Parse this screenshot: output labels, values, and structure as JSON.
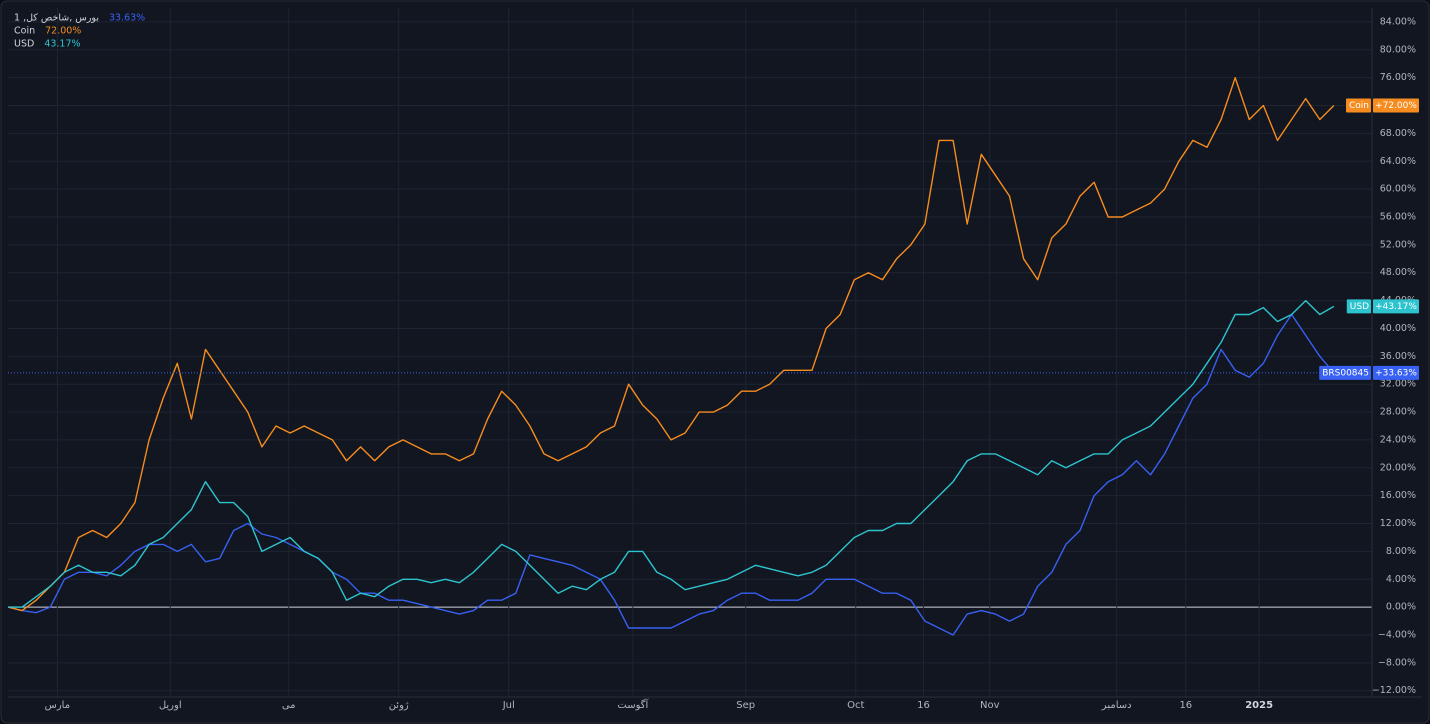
{
  "chart_data": {
    "type": "line",
    "x": [
      0,
      1,
      2,
      3,
      4,
      5,
      6,
      7,
      8,
      9,
      10,
      11,
      12,
      13,
      14,
      15,
      16,
      17,
      18,
      19,
      20,
      21,
      22,
      23,
      24,
      25,
      26,
      27,
      28,
      29,
      30,
      31,
      32,
      33,
      34,
      35,
      36,
      37,
      38,
      39,
      40,
      41,
      42,
      43,
      44,
      45,
      46,
      47,
      48,
      49,
      50,
      51,
      52,
      53,
      54,
      55,
      56,
      57,
      58,
      59,
      60,
      61,
      62,
      63,
      64,
      65,
      66,
      67,
      68,
      69,
      70,
      71,
      72,
      73,
      74,
      75,
      76,
      77,
      78,
      79,
      80,
      81,
      82,
      83,
      84,
      85,
      86,
      87,
      88,
      89,
      90,
      91,
      92,
      93,
      94
    ],
    "xlim": [
      0,
      96.7
    ],
    "xticks": [
      {
        "value": 3.5,
        "label": "مارس"
      },
      {
        "value": 11.5,
        "label": "اوریل"
      },
      {
        "value": 19.9,
        "label": "می"
      },
      {
        "value": 27.7,
        "label": "ژوئن"
      },
      {
        "value": 35.5,
        "label": "Jul"
      },
      {
        "value": 44.3,
        "label": "آگوست"
      },
      {
        "value": 52.3,
        "label": "Sep"
      },
      {
        "value": 60.1,
        "label": "Oct"
      },
      {
        "value": 64.9,
        "label": "16"
      },
      {
        "value": 69.6,
        "label": "Nov"
      },
      {
        "value": 78.6,
        "label": "دسامبر"
      },
      {
        "value": 83.5,
        "label": "16"
      },
      {
        "value": 88.7,
        "label": "2025"
      }
    ],
    "ylim": [
      -12.9,
      86
    ],
    "yticks": [
      {
        "value": -12,
        "label": "−12.00%"
      },
      {
        "value": -8,
        "label": "−8.00%"
      },
      {
        "value": -4,
        "label": "−4.00%"
      },
      {
        "value": 0,
        "label": "0.00%"
      },
      {
        "value": 4,
        "label": "4.00%"
      },
      {
        "value": 8,
        "label": "8.00%"
      },
      {
        "value": 12,
        "label": "12.00%"
      },
      {
        "value": 16,
        "label": "16.00%"
      },
      {
        "value": 20,
        "label": "20.00%"
      },
      {
        "value": 24,
        "label": "24.00%"
      },
      {
        "value": 28,
        "label": "28.00%"
      },
      {
        "value": 32,
        "label": "32.00%"
      },
      {
        "value": 36,
        "label": "36.00%"
      },
      {
        "value": 40,
        "label": "40.00%"
      },
      {
        "value": 44,
        "label": "44.00%"
      },
      {
        "value": 48,
        "label": "48.00%"
      },
      {
        "value": 52,
        "label": "52.00%"
      },
      {
        "value": 56,
        "label": "56.00%"
      },
      {
        "value": 60,
        "label": "60.00%"
      },
      {
        "value": 64,
        "label": "64.00%"
      },
      {
        "value": 68,
        "label": "68.00%"
      },
      {
        "value": 72,
        "label": "72.00%"
      },
      {
        "value": 76,
        "label": "76.00%"
      },
      {
        "value": 80,
        "label": "80.00%"
      },
      {
        "value": 84,
        "label": "84.00%"
      }
    ],
    "grid": true,
    "series": [
      {
        "name": "بورس ,شاخص کل, 1",
        "legend_value": "33.63%",
        "tag": "BRS00845",
        "tag_value": "+33.63%",
        "color": "#3860f2",
        "values": [
          0,
          -0.5,
          -0.8,
          0,
          4,
          5,
          5,
          4.5,
          6,
          8,
          9,
          9,
          8,
          9,
          6.5,
          7,
          11,
          12,
          10.5,
          10,
          9,
          8,
          7,
          5,
          4,
          2,
          2,
          1,
          1,
          0.5,
          0,
          -0.5,
          -1,
          -0.5,
          1,
          1,
          2,
          7.5,
          7,
          6.5,
          6,
          5,
          4,
          1,
          -3,
          -3,
          -3,
          -3,
          -2,
          -1,
          -0.5,
          1,
          2,
          2,
          1,
          1,
          1,
          2,
          4,
          4,
          4,
          3,
          2,
          2,
          1,
          -2,
          -3,
          -4,
          -1,
          -0.5,
          -1,
          -2,
          -1,
          3,
          5,
          9,
          11,
          16,
          18,
          19,
          21,
          19,
          22,
          26,
          30,
          32,
          37,
          34,
          33,
          35,
          39,
          42,
          39,
          36,
          33.63
        ]
      },
      {
        "name": "Coin",
        "legend_value": "72.00%",
        "tag": "Coin",
        "tag_value": "+72.00%",
        "color": "#f68c1f",
        "values": [
          0,
          -0.5,
          1,
          3,
          5,
          10,
          11,
          10,
          12,
          15,
          24,
          30,
          35,
          27,
          37,
          34,
          31,
          28,
          23,
          26,
          25,
          26,
          25,
          24,
          21,
          23,
          21,
          23,
          24,
          23,
          22,
          22,
          21,
          22,
          27,
          31,
          29,
          26,
          22,
          21,
          22,
          23,
          25,
          26,
          32,
          29,
          27,
          24,
          25,
          28,
          28,
          29,
          31,
          31,
          32,
          34,
          34,
          34,
          40,
          42,
          47,
          48,
          47,
          50,
          52,
          55,
          67,
          67,
          55,
          65,
          62,
          59,
          50,
          47,
          53,
          55,
          59,
          61,
          56,
          56,
          57,
          58,
          60,
          64,
          67,
          66,
          70,
          76,
          70,
          72,
          67,
          70,
          73,
          70,
          72.0
        ]
      },
      {
        "name": "USD",
        "legend_value": "43.17%",
        "tag": "USD",
        "tag_value": "+43.17%",
        "color": "#2ec4cf",
        "values": [
          0,
          0,
          1.5,
          3,
          5,
          6,
          5,
          5,
          4.5,
          6,
          9,
          10,
          12,
          14,
          18,
          15,
          15,
          13,
          8,
          9,
          10,
          8,
          7,
          5,
          1,
          2,
          1.5,
          3,
          4,
          4,
          3.5,
          4,
          3.5,
          5,
          7,
          9,
          8,
          6,
          4,
          2,
          3,
          2.5,
          4,
          5,
          8,
          8,
          5,
          4,
          2.5,
          3,
          3.5,
          4,
          5,
          6,
          5.5,
          5,
          4.5,
          5,
          6,
          8,
          10,
          11,
          11,
          12,
          12,
          14,
          16,
          18,
          21,
          22,
          22,
          21,
          20,
          19,
          21,
          20,
          21,
          22,
          22,
          24,
          25,
          26,
          28,
          30,
          32,
          35,
          38,
          42,
          42,
          43,
          41,
          42,
          44,
          42,
          43.17
        ]
      }
    ]
  }
}
